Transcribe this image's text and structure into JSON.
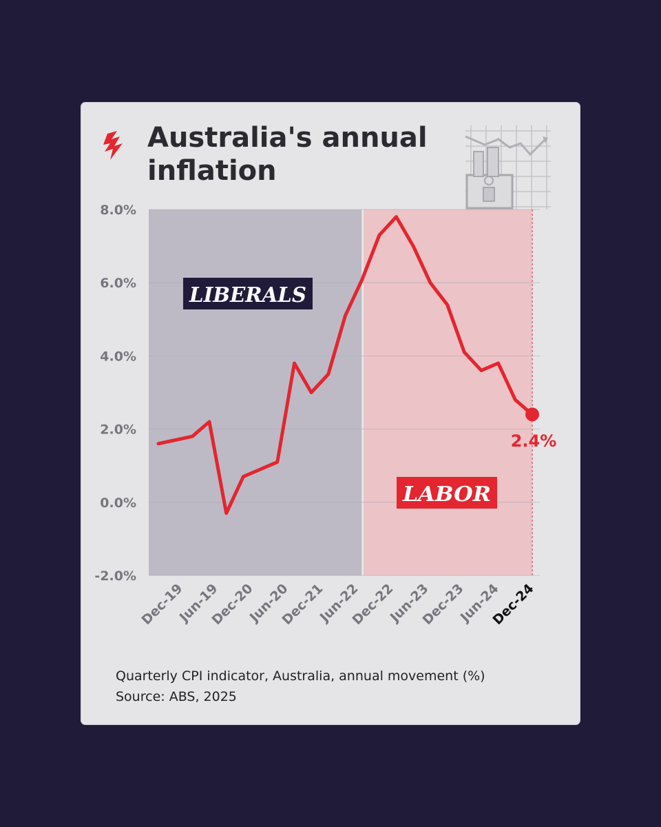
{
  "title": "Australia's annual inflation",
  "footnote": {
    "line1": "Quarterly CPI indicator, Australia, annual movement (%)",
    "line2": "Source: ABS, 2025"
  },
  "icons": {
    "logo": "sbs-logo-icon",
    "decoration": "shopping-bag-chart-icon"
  },
  "colors": {
    "background": "#211b3a",
    "card": "#e5e5e7",
    "line": "#e3262f",
    "liberal_band": "#bdbac6",
    "labor_band": "#ecc3c7",
    "liberal_label_bg": "#211b3a",
    "labor_label_bg": "#e3262f"
  },
  "chart_data": {
    "type": "line",
    "ylim": [
      -2,
      8
    ],
    "yticks": [
      8,
      6,
      4,
      2,
      0,
      -2
    ],
    "ytick_labels": [
      "8.0%",
      "6.0%",
      "4.0%",
      "2.0%",
      "0.0%",
      "-2.0%"
    ],
    "xtick_labels": [
      "Dec-19",
      "Jun-19",
      "Dec-20",
      "Jun-20",
      "Dec-21",
      "Jun-22",
      "Dec-22",
      "Jun-23",
      "Dec-23",
      "Jun-24",
      "Dec-24"
    ],
    "grid": true,
    "series": [
      {
        "values": [
          1.6,
          1.7,
          1.8,
          2.2,
          -0.3,
          0.7,
          0.9,
          1.1,
          3.8,
          3.0,
          3.5,
          5.1,
          6.1,
          7.3,
          7.8,
          7.0,
          6.0,
          5.4,
          4.1,
          3.6,
          3.8,
          2.8,
          2.4
        ]
      }
    ],
    "regions": [
      {
        "label": "LIBERALS",
        "from_index": 0,
        "to_index": 12
      },
      {
        "label": "LABOR",
        "from_index": 12,
        "to_index": 22
      }
    ],
    "end_label": "2.4%"
  }
}
